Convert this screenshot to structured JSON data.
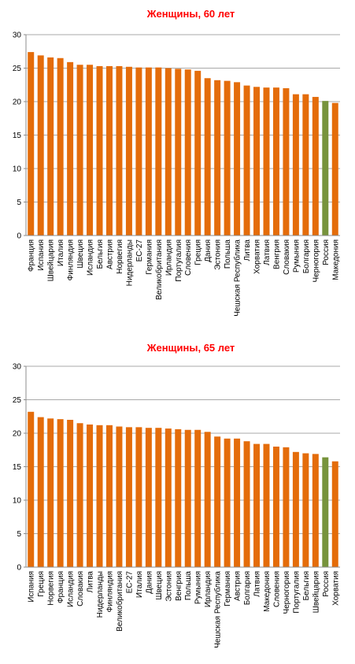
{
  "chart_data": [
    {
      "type": "bar",
      "title": "Женщины, 60 лет",
      "categories": [
        "Франция",
        "Испания",
        "Швейцария",
        "Италия",
        "Финляндия",
        "Швеция",
        "Исландия",
        "Бельгия",
        "Австрия",
        "Норвегия",
        "Нидерланды",
        "ЕС-27",
        "Германия",
        "Великобритания",
        "Ирландия",
        "Португалия",
        "Словения",
        "Греция",
        "Дания",
        "Эстония",
        "Польша",
        "Чешская Республика",
        "Литва",
        "Хорватия",
        "Латвия",
        "Венгрия",
        "Словакия",
        "Румыния",
        "Болгария",
        "Черногория",
        "Россия",
        "Македония"
      ],
      "values": [
        27.4,
        26.9,
        26.6,
        26.5,
        25.9,
        25.5,
        25.5,
        25.3,
        25.3,
        25.3,
        25.2,
        25.1,
        25.1,
        25.1,
        25.0,
        24.9,
        24.8,
        24.6,
        23.5,
        23.2,
        23.1,
        22.9,
        22.4,
        22.2,
        22.1,
        22.1,
        22.0,
        21.1,
        21.1,
        20.7,
        20.1,
        19.8
      ],
      "colors": [
        "#e46c0a",
        "#e46c0a",
        "#e46c0a",
        "#e46c0a",
        "#e46c0a",
        "#e46c0a",
        "#e46c0a",
        "#e46c0a",
        "#e46c0a",
        "#e46c0a",
        "#e46c0a",
        "#e46c0a",
        "#e46c0a",
        "#e46c0a",
        "#e46c0a",
        "#e46c0a",
        "#e46c0a",
        "#e46c0a",
        "#e46c0a",
        "#e46c0a",
        "#e46c0a",
        "#e46c0a",
        "#e46c0a",
        "#e46c0a",
        "#e46c0a",
        "#e46c0a",
        "#e46c0a",
        "#e46c0a",
        "#e46c0a",
        "#e46c0a",
        "#77933c",
        "#e46c0a"
      ],
      "ylim": [
        0,
        30
      ],
      "yticks": [
        0,
        5,
        10,
        15,
        20,
        25,
        30
      ],
      "grid": true
    },
    {
      "type": "bar",
      "title": "Женщины, 65 лет",
      "categories": [
        "Испания",
        "Греция",
        "Норвегия",
        "Франция",
        "Исландия",
        "Словакия",
        "Литва",
        "Нидерланды",
        "Финляндия",
        "Великобритания",
        "ЕС-27",
        "Италия",
        "Дания",
        "Швеция",
        "Эстония",
        "Венгрия",
        "Польша",
        "Румыния",
        "Ирландия",
        "Чешская Республика",
        "Германия",
        "Австрия",
        "Болгария",
        "Латвия",
        "Македония",
        "Словения",
        "Черногория",
        "Португалия",
        "Бельгия",
        "Швейцария",
        "Россия",
        "Хорватия"
      ],
      "values": [
        23.2,
        22.4,
        22.2,
        22.1,
        22.0,
        21.5,
        21.3,
        21.2,
        21.2,
        21.0,
        20.9,
        20.9,
        20.8,
        20.8,
        20.7,
        20.6,
        20.5,
        20.5,
        20.2,
        19.5,
        19.2,
        19.2,
        18.8,
        18.4,
        18.4,
        18.0,
        17.9,
        17.2,
        17.0,
        16.9,
        16.4,
        15.8
      ],
      "colors": [
        "#e46c0a",
        "#e46c0a",
        "#e46c0a",
        "#e46c0a",
        "#e46c0a",
        "#e46c0a",
        "#e46c0a",
        "#e46c0a",
        "#e46c0a",
        "#e46c0a",
        "#e46c0a",
        "#e46c0a",
        "#e46c0a",
        "#e46c0a",
        "#e46c0a",
        "#e46c0a",
        "#e46c0a",
        "#e46c0a",
        "#e46c0a",
        "#e46c0a",
        "#e46c0a",
        "#e46c0a",
        "#e46c0a",
        "#e46c0a",
        "#e46c0a",
        "#e46c0a",
        "#e46c0a",
        "#e46c0a",
        "#e46c0a",
        "#e46c0a",
        "#77933c",
        "#e46c0a"
      ],
      "ylim": [
        0,
        30
      ],
      "yticks": [
        0,
        5,
        10,
        15,
        20,
        25,
        30
      ],
      "grid": true
    }
  ]
}
